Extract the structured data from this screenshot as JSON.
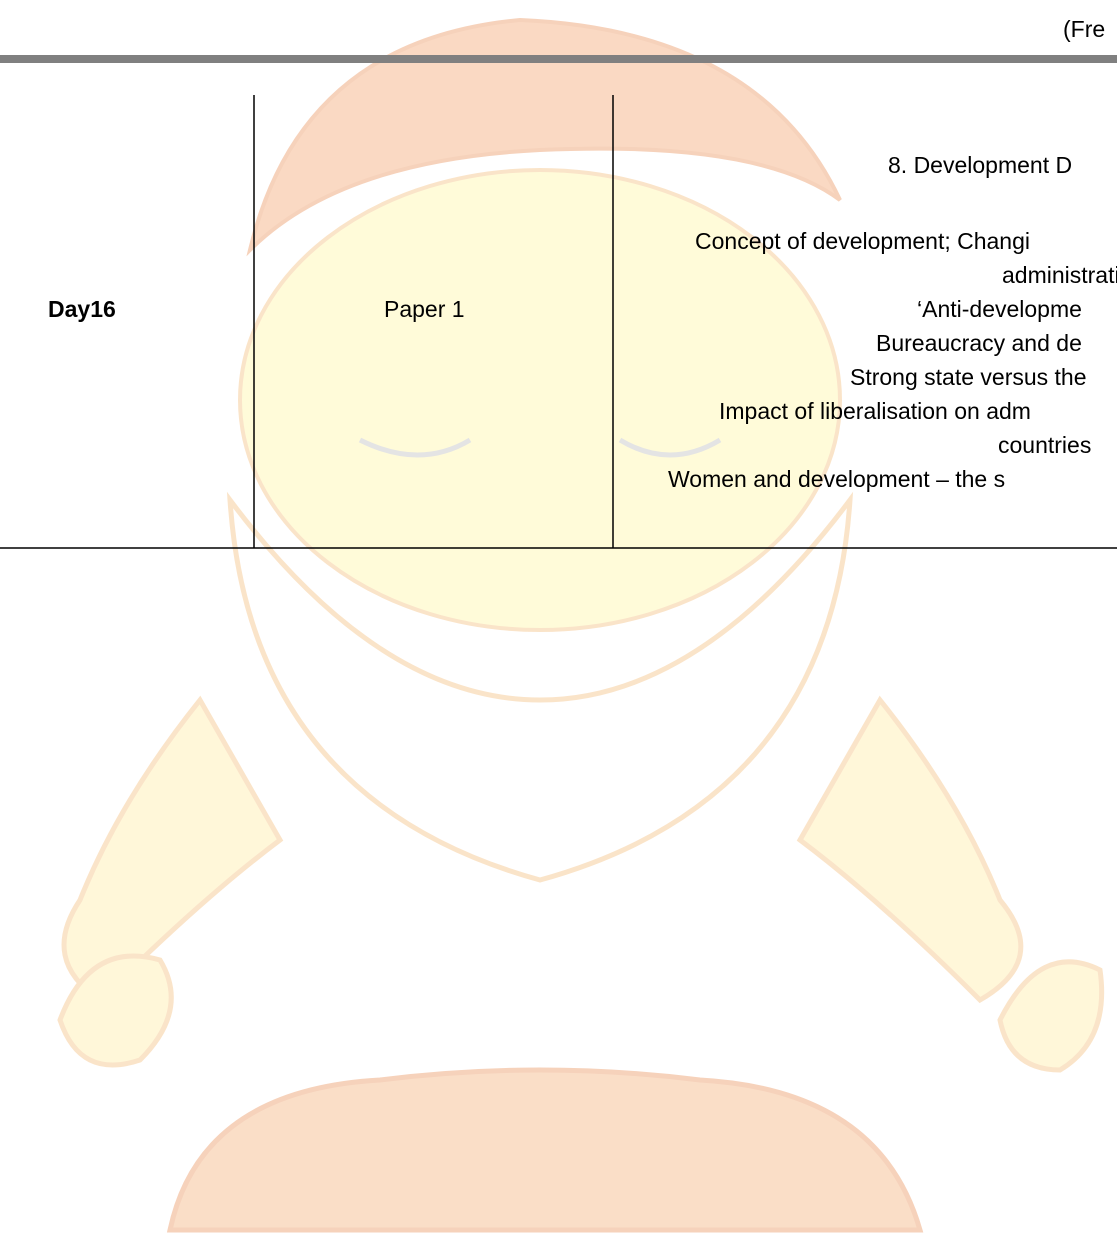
{
  "header": {
    "text": "(Fre"
  },
  "table": {
    "rows": [
      {
        "day": "Day16",
        "paper": "Paper 1",
        "topic": {
          "title": "8. Development D",
          "lines": [
            "Concept of development; Changi",
            "administrati",
            "‘Anti-developme",
            "Bureaucracy and de",
            "Strong state versus the",
            "Impact of liberalisation on adm",
            "countries",
            "Women and development – the s"
          ]
        }
      }
    ]
  }
}
